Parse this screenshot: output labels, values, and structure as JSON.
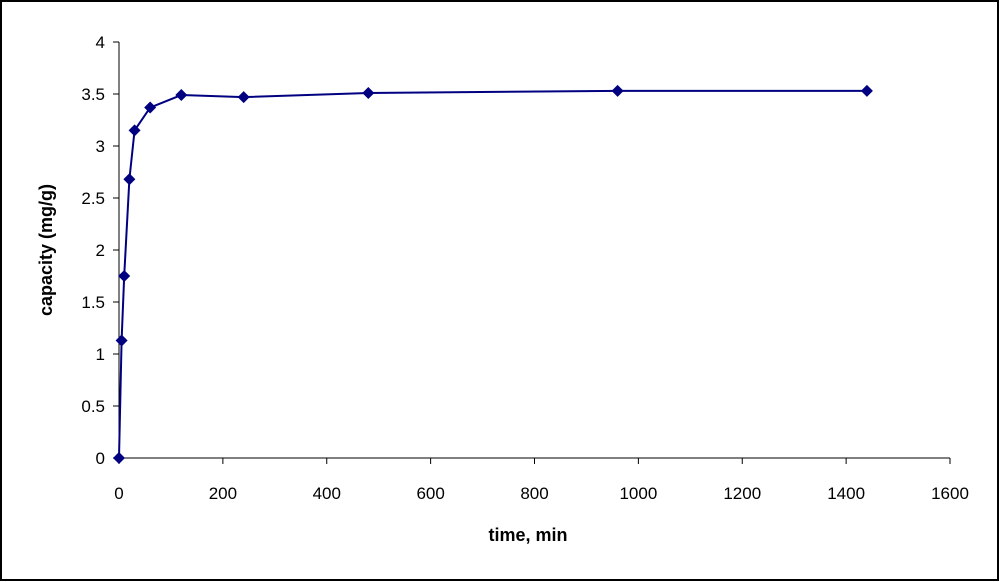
{
  "chart_data": {
    "type": "line",
    "x_label": "time, min",
    "y_label": "capacity (mg/g)",
    "x": [
      0,
      5,
      10,
      20,
      30,
      60,
      120,
      240,
      480,
      960,
      1440
    ],
    "series": [
      {
        "color": "#000080",
        "marker": "diamond",
        "values": [
          0,
          1.13,
          1.75,
          2.68,
          3.15,
          3.37,
          3.49,
          3.47,
          3.51,
          3.53,
          3.53
        ]
      }
    ],
    "xlim": [
      0,
      1600
    ],
    "xticks": [
      0,
      200,
      400,
      600,
      800,
      1000,
      1200,
      1400,
      1600
    ],
    "ylim": [
      0,
      4
    ],
    "yticks": [
      0,
      0.5,
      1,
      1.5,
      2,
      2.5,
      3,
      3.5,
      4
    ],
    "grid": false
  }
}
